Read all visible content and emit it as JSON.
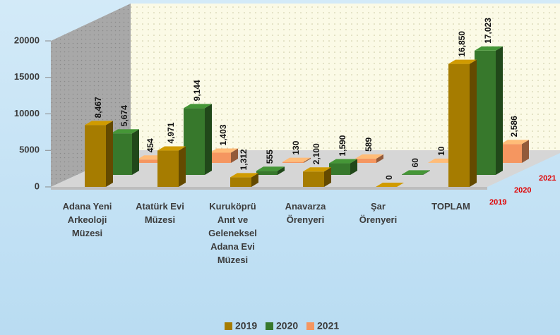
{
  "chart_data": {
    "type": "bar3d",
    "categories": [
      "Adana Yeni Arkeoloji Müzesi",
      "Atatürk Evi Müzesi",
      "Kuruköprü Anıt ve Geleneksel Adana Evi Müzesi",
      "Anavarza Örenyeri",
      "Şar Örenyeri",
      "TOPLAM"
    ],
    "series": [
      {
        "name": "2019",
        "color": "#a67c00",
        "values": [
          8467,
          4971,
          1312,
          2100,
          0,
          16850
        ],
        "value_labels": [
          "8,467",
          "4,971",
          "1,312",
          "2,100",
          "0",
          "16,850"
        ]
      },
      {
        "name": "2020",
        "color": "#37782c",
        "values": [
          5674,
          9144,
          555,
          1590,
          60,
          17023
        ],
        "value_labels": [
          "5,674",
          "9,144",
          "555",
          "1,590",
          "60",
          "17,023"
        ]
      },
      {
        "name": "2021",
        "color": "#f59660",
        "values": [
          454,
          1403,
          130,
          589,
          10,
          2586
        ],
        "value_labels": [
          "454",
          "1,403",
          "130",
          "589",
          "10",
          "2,586"
        ]
      }
    ],
    "ylim": [
      0,
      20000
    ],
    "yticks": [
      0,
      5000,
      10000,
      15000,
      20000
    ],
    "legend": "bottom"
  }
}
